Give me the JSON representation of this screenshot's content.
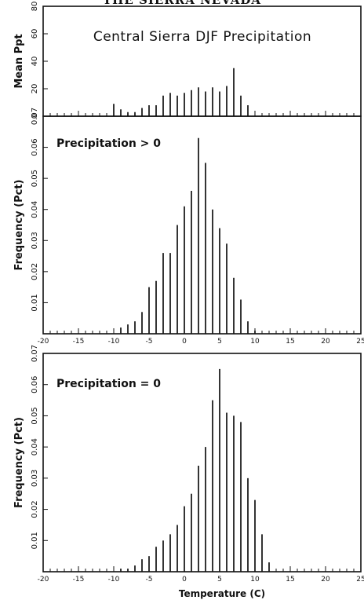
{
  "header_text": "THE SIERRA NEVADA",
  "chart_data": [
    {
      "type": "bar",
      "panel": "top",
      "title": "Central Sierra DJF Precipitation",
      "ylabel": "Mean Ppt",
      "xlim": [
        -20,
        25
      ],
      "ylim": [
        0,
        80
      ],
      "yticks": [
        "0",
        "20",
        "40",
        "60",
        "80"
      ],
      "grid": false,
      "x": [
        -10,
        -9,
        -8,
        -7,
        -6,
        -5,
        -4,
        -3,
        -2,
        -1,
        0,
        1,
        2,
        3,
        4,
        5,
        6,
        7,
        8,
        9
      ],
      "values": [
        9,
        5,
        3,
        3,
        6,
        8,
        8,
        15,
        17,
        15,
        17,
        19,
        21,
        18,
        21,
        18,
        22,
        35,
        15,
        8
      ]
    },
    {
      "type": "bar",
      "panel": "middle",
      "annotation": "Precipitation > 0",
      "ylabel": "Frequency (Pct)",
      "xlim": [
        -20,
        25
      ],
      "ylim": [
        0,
        0.07
      ],
      "yticks": [
        "0.00",
        "0.01",
        "0.02",
        "0.03",
        "0.04",
        "0.05",
        "0.06",
        "0.07"
      ],
      "xticks": [
        "-20",
        "-15",
        "-10",
        "-5",
        "0",
        "5",
        "10",
        "15",
        "20",
        "25"
      ],
      "grid": false,
      "x": [
        -9,
        -8,
        -7,
        -6,
        -5,
        -4,
        -3,
        -2,
        -1,
        0,
        1,
        2,
        3,
        4,
        5,
        6,
        7,
        8,
        9,
        10
      ],
      "values": [
        0.002,
        0.003,
        0.004,
        0.007,
        0.015,
        0.017,
        0.026,
        0.026,
        0.035,
        0.041,
        0.046,
        0.063,
        0.055,
        0.04,
        0.034,
        0.029,
        0.018,
        0.011,
        0.004,
        0.001
      ]
    },
    {
      "type": "bar",
      "panel": "bottom",
      "annotation": "Precipitation = 0",
      "ylabel": "Frequency (Pct)",
      "xlabel": "Temperature (C)",
      "xlim": [
        -20,
        25
      ],
      "ylim": [
        0,
        0.07
      ],
      "yticks": [
        "0.00",
        "0.01",
        "0.02",
        "0.03",
        "0.04",
        "0.05",
        "0.06",
        "0.07"
      ],
      "xticks": [
        "-20",
        "-15",
        "-10",
        "-5",
        "0",
        "5",
        "10",
        "15",
        "20",
        "25"
      ],
      "grid": false,
      "x": [
        -9,
        -8,
        -7,
        -6,
        -5,
        -4,
        -3,
        -2,
        -1,
        0,
        1,
        2,
        3,
        4,
        5,
        6,
        7,
        8,
        9,
        10,
        11,
        12
      ],
      "values": [
        0.001,
        0.001,
        0.002,
        0.004,
        0.005,
        0.008,
        0.01,
        0.012,
        0.015,
        0.021,
        0.025,
        0.034,
        0.04,
        0.055,
        0.065,
        0.051,
        0.05,
        0.048,
        0.03,
        0.023,
        0.012,
        0.003
      ]
    }
  ]
}
